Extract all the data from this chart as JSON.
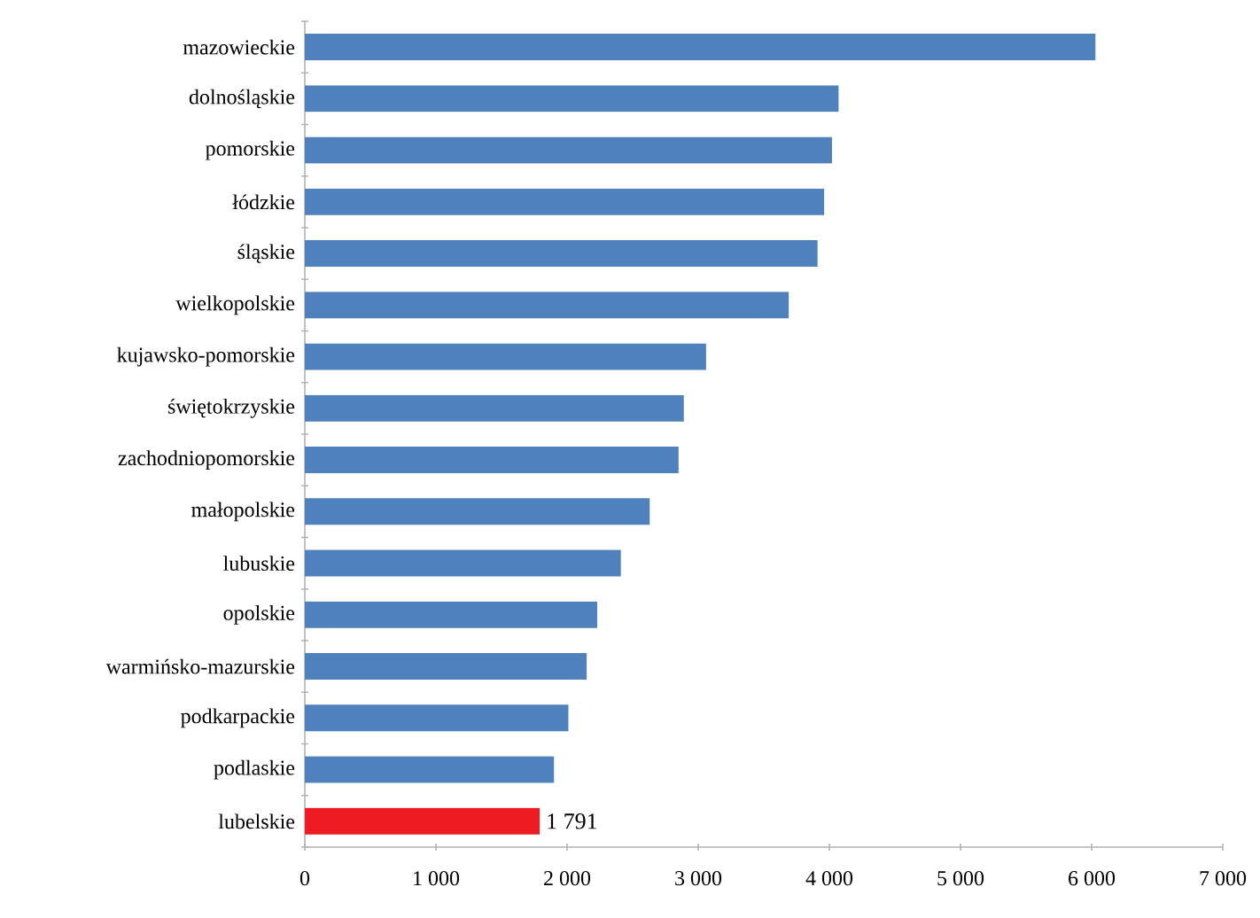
{
  "chart_data": {
    "type": "bar",
    "orientation": "horizontal",
    "categories": [
      "mazowieckie",
      "dolnośląskie",
      "pomorskie",
      "łódzkie",
      "śląskie",
      "wielkopolskie",
      "kujawsko-pomorskie",
      "świętokrzyskie",
      "zachodniopomorskie",
      "małopolskie",
      "lubuskie",
      "opolskie",
      "warmińsko-mazurskie",
      "podkarpackie",
      "podlaskie",
      "lubelskie"
    ],
    "values": [
      6030,
      4070,
      4020,
      3960,
      3910,
      3690,
      3060,
      2890,
      2850,
      2630,
      2410,
      2230,
      2150,
      2010,
      1900,
      1791
    ],
    "colors": [
      "#4f81bd",
      "#4f81bd",
      "#4f81bd",
      "#4f81bd",
      "#4f81bd",
      "#4f81bd",
      "#4f81bd",
      "#4f81bd",
      "#4f81bd",
      "#4f81bd",
      "#4f81bd",
      "#4f81bd",
      "#4f81bd",
      "#4f81bd",
      "#4f81bd",
      "#ed1c24"
    ],
    "value_labels": [
      null,
      null,
      null,
      null,
      null,
      null,
      null,
      null,
      null,
      null,
      null,
      null,
      null,
      null,
      null,
      "1 791"
    ],
    "xlim": [
      0,
      7000
    ],
    "xticks": [
      0,
      {
        "value": 1000,
        "label": "1 000"
      },
      {
        "value": 2000,
        "label": "2 000"
      },
      {
        "value": 3000,
        "label": "3 000"
      },
      {
        "value": 4000,
        "label": "4 000"
      },
      {
        "value": 5000,
        "label": "5 000"
      },
      {
        "value": 6000,
        "label": "6 000"
      },
      {
        "value": 7000,
        "label": "7 000"
      }
    ],
    "grid": false
  }
}
